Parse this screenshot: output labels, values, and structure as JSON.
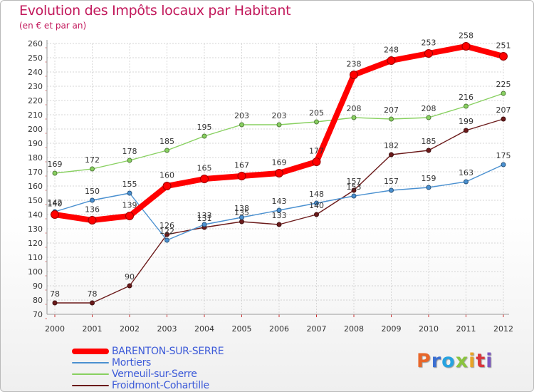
{
  "header": {
    "title": "Evolution des Impôts locaux par Habitant",
    "subtitle": "(en € et par an)"
  },
  "colors": {
    "barenton": "#ff0000",
    "mortiers": "#4a90d0",
    "verneuil": "#88d060",
    "froidmont": "#6b1a1a",
    "grid": "#c8c8c8",
    "axis_text": "#333333",
    "axis_tick": "#cc3333"
  },
  "chart_data": {
    "type": "line",
    "title": "Evolution des Impôts locaux par Habitant",
    "subtitle": "(en € et par an)",
    "xlabel": "",
    "ylabel": "",
    "ylim": [
      70,
      260
    ],
    "ystep": 10,
    "grid": true,
    "x": [
      "2000",
      "2001",
      "2002",
      "2003",
      "2004",
      "2005",
      "2006",
      "2007",
      "2008",
      "2009",
      "2010",
      "2011",
      "2012"
    ],
    "series": [
      {
        "key": "verneuil",
        "name": "Verneuil-sur-Serre",
        "values": [
          169,
          172,
          178,
          185,
          195,
          203,
          203,
          205,
          208,
          207,
          208,
          216,
          225
        ]
      },
      {
        "key": "froidmont",
        "name": "Froidmont-Cohartille",
        "values": [
          78,
          78,
          90,
          126,
          131,
          135,
          133,
          140,
          157,
          182,
          185,
          199,
          207
        ]
      },
      {
        "key": "mortiers",
        "name": "Mortiers",
        "values": [
          142,
          150,
          155,
          122,
          133,
          138,
          143,
          148,
          153,
          157,
          159,
          163,
          175
        ]
      },
      {
        "key": "barenton",
        "name": "BARENTON-SUR-SERRE",
        "values": [
          140,
          136,
          139,
          160,
          165,
          167,
          169,
          177,
          238,
          248,
          253,
          258,
          251
        ]
      }
    ],
    "legend_order": [
      "barenton",
      "mortiers",
      "verneuil",
      "froidmont"
    ],
    "legend_position": "bottom-left"
  },
  "logo": {
    "text": "Proxiti",
    "colors": [
      "#e8662a",
      "#3b6fd1",
      "#27a3e0",
      "#8ac43f",
      "#e8a427",
      "#d9353c",
      "#7a56c2"
    ]
  }
}
